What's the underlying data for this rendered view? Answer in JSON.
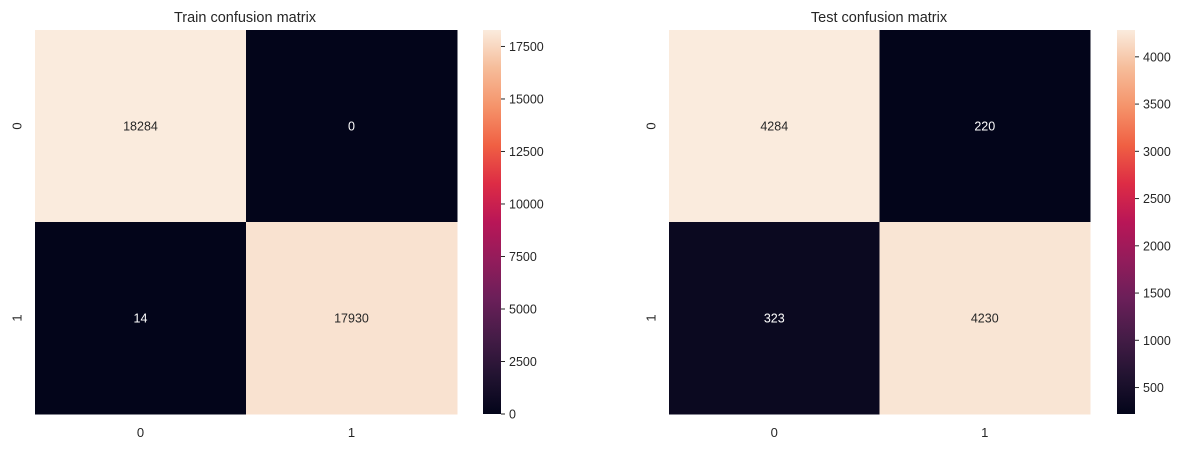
{
  "chart_data": [
    {
      "type": "heatmap",
      "title": "Train confusion matrix",
      "xlabel": "",
      "ylabel": "",
      "x_tick_labels": [
        "0",
        "1"
      ],
      "y_tick_labels": [
        "0",
        "1"
      ],
      "values": [
        [
          18284,
          0
        ],
        [
          14,
          17930
        ]
      ],
      "cell_labels": [
        [
          "18284",
          "0"
        ],
        [
          "14",
          "17930"
        ]
      ],
      "colormap": "rocket",
      "colorbar": {
        "range": [
          0,
          18284
        ],
        "ticks": [
          0,
          2500,
          5000,
          7500,
          10000,
          12500,
          15000,
          17500
        ],
        "tick_labels": [
          "0",
          "2500",
          "5000",
          "7500",
          "10000",
          "12500",
          "15000",
          "17500"
        ]
      }
    },
    {
      "type": "heatmap",
      "title": "Test confusion matrix",
      "xlabel": "",
      "ylabel": "",
      "x_tick_labels": [
        "0",
        "1"
      ],
      "y_tick_labels": [
        "0",
        "1"
      ],
      "values": [
        [
          4284,
          220
        ],
        [
          323,
          4230
        ]
      ],
      "cell_labels": [
        [
          "4284",
          "220"
        ],
        [
          "323",
          "4230"
        ]
      ],
      "colormap": "rocket",
      "colorbar": {
        "range": [
          220,
          4284
        ],
        "ticks": [
          500,
          1000,
          1500,
          2000,
          2500,
          3000,
          3500,
          4000
        ],
        "tick_labels": [
          "500",
          "1000",
          "1500",
          "2000",
          "2500",
          "3000",
          "3500",
          "4000"
        ]
      }
    }
  ]
}
